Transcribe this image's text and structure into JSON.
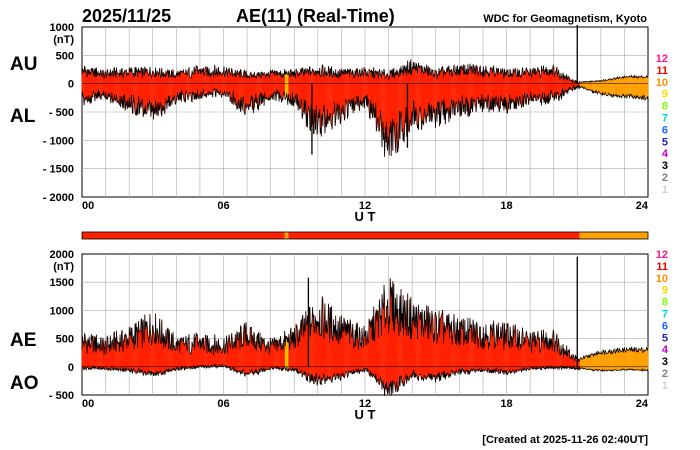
{
  "header": {
    "date": "2025/11/25",
    "title": "AE(11) (Real-Time)",
    "source": "WDC for Geomagnetism, Kyoto"
  },
  "footer": {
    "created": "[Created at 2025-11-26 02:40UT]"
  },
  "colors": {
    "fill_main": "#ff2200",
    "fill_late": "#ffa000",
    "fill_gap": "#ffbb00",
    "outline": "#000000",
    "grid": "#aaaaaa"
  },
  "station_legend": [
    {
      "label": "12",
      "color": "#ff1493"
    },
    {
      "label": "11",
      "color": "#ff0000"
    },
    {
      "label": "10",
      "color": "#ff8c00"
    },
    {
      "label": "9",
      "color": "#f0e000"
    },
    {
      "label": "8",
      "color": "#7fff00"
    },
    {
      "label": "7",
      "color": "#00d8d8"
    },
    {
      "label": "6",
      "color": "#1e5fff"
    },
    {
      "label": "5",
      "color": "#2020c0"
    },
    {
      "label": "4",
      "color": "#c000c0"
    },
    {
      "label": "3",
      "color": "#000000"
    },
    {
      "label": "2",
      "color": "#808080"
    },
    {
      "label": "1",
      "color": "#d0d0d0"
    }
  ],
  "station_bar": [
    {
      "from": 0,
      "to": 8.6,
      "stations": 11
    },
    {
      "from": 8.6,
      "to": 8.75,
      "stations": 10
    },
    {
      "from": 8.75,
      "to": 21.1,
      "stations": 11
    },
    {
      "from": 21.1,
      "to": 24,
      "stations": 10
    }
  ],
  "chart_data": [
    {
      "id": "au_al",
      "type": "area",
      "xlabel": "U T",
      "ylabel": "(nT)",
      "upper_label": "AU",
      "lower_label": "AL",
      "xlim": [
        0,
        24
      ],
      "ylim": [
        -2000,
        1000
      ],
      "xticks": [
        0,
        6,
        12,
        18,
        24
      ],
      "xtick_labels": [
        "00",
        "06",
        "12",
        "18",
        "24"
      ],
      "yticks": [
        1000,
        500,
        0,
        -500,
        -1000,
        -1500,
        -2000
      ],
      "ytick_labels": [
        "1000",
        "500",
        "0",
        "- 500",
        "- 1000",
        "- 1500",
        "- 2000"
      ],
      "grid": true,
      "hours": [
        0,
        1,
        2,
        3,
        4,
        5,
        6,
        7,
        8,
        9,
        10,
        11,
        12,
        13,
        14,
        15,
        16,
        17,
        18,
        19,
        20,
        21,
        22,
        23,
        24
      ],
      "series": [
        {
          "name": "AU",
          "values": [
            230,
            170,
            200,
            200,
            160,
            220,
            220,
            140,
            170,
            170,
            230,
            180,
            200,
            150,
            300,
            180,
            240,
            240,
            180,
            200,
            240,
            20,
            50,
            120,
            120
          ]
        },
        {
          "name": "AL",
          "values": [
            -260,
            -200,
            -340,
            -520,
            -240,
            -200,
            -150,
            -420,
            -200,
            -300,
            -720,
            -480,
            -300,
            -1000,
            -580,
            -560,
            -400,
            -350,
            -370,
            -260,
            -240,
            -40,
            -180,
            -220,
            -250
          ]
        }
      ],
      "spikes": [
        {
          "x": 9.75,
          "series": "AL",
          "value": -1250
        },
        {
          "x": 13.8,
          "series": "AL",
          "value": -1130
        },
        {
          "x": 21.0,
          "series": "AU",
          "value": 1050
        }
      ]
    },
    {
      "id": "ae_ao",
      "type": "area",
      "xlabel": "U T",
      "ylabel": "(nT)",
      "upper_label": "AE",
      "lower_label": "AO",
      "xlim": [
        0,
        24
      ],
      "ylim": [
        -500,
        2000
      ],
      "xticks": [
        0,
        6,
        12,
        18,
        24
      ],
      "xtick_labels": [
        "00",
        "06",
        "12",
        "18",
        "24"
      ],
      "yticks": [
        2000,
        1500,
        1000,
        500,
        0,
        -500
      ],
      "ytick_labels": [
        "2000",
        "1500",
        "1000",
        "500",
        "0",
        "- 500"
      ],
      "grid": true,
      "hours": [
        0,
        1,
        2,
        3,
        4,
        5,
        6,
        7,
        8,
        9,
        10,
        11,
        12,
        13,
        14,
        15,
        16,
        17,
        18,
        19,
        20,
        21,
        22,
        23,
        24
      ],
      "series": [
        {
          "name": "AE",
          "values": [
            450,
            370,
            500,
            700,
            380,
            420,
            370,
            550,
            350,
            500,
            900,
            650,
            500,
            1100,
            850,
            720,
            620,
            580,
            560,
            450,
            480,
            120,
            260,
            300,
            300
          ]
        },
        {
          "name": "AO",
          "values": [
            -20,
            -30,
            -50,
            -140,
            -40,
            0,
            20,
            -130,
            -20,
            -60,
            -250,
            -150,
            -50,
            -400,
            -150,
            -200,
            -80,
            -60,
            -100,
            -30,
            -10,
            -20,
            -70,
            -50,
            -60
          ]
        }
      ],
      "spikes": [
        {
          "x": 9.6,
          "series": "AE",
          "value": 1580
        },
        {
          "x": 21.0,
          "series": "AE",
          "value": 1950
        }
      ]
    }
  ]
}
